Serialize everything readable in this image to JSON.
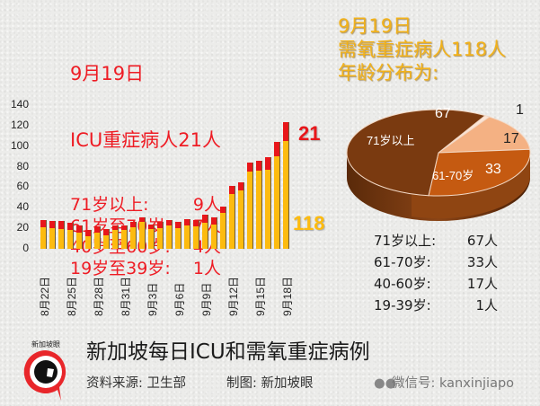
{
  "icu_panel": {
    "date": "9月19日",
    "headline": "ICU重症病人21人",
    "rows": [
      {
        "label": "71岁以上:",
        "value": "9人"
      },
      {
        "label": "61岁至70岁:",
        "value": "7人"
      },
      {
        "label": "40岁至60岁:",
        "value": "4人"
      },
      {
        "label": "19岁至39岁:",
        "value": "1人"
      }
    ]
  },
  "oxygen_panel": {
    "date": "9月19日",
    "headline": "需氧重症病人118人",
    "subhead": "年龄分布为:"
  },
  "distribution": [
    {
      "label": "71岁以上:",
      "value": "67人"
    },
    {
      "label": "61-70岁:",
      "value": "33人"
    },
    {
      "label": "40-60岁:",
      "value": "17人"
    },
    {
      "label": "19-39岁:",
      "value": "1人"
    }
  ],
  "footer": {
    "logo_text": "新加坡眼",
    "title": "新加坡每日ICU和需氧重症病例",
    "source": "资料来源:  卫生部",
    "maker": "制图:  新加坡眼",
    "wechat": "微信号: kanxinjiapo",
    "wechat_icon": "wechat-icon"
  },
  "colors": {
    "icu_red": "#e8161a",
    "oxygen_yellow": "#fdbb0f",
    "pie_71plus": "#7a3a10",
    "pie_61_70": "#c55a11",
    "pie_40_60": "#f4b183",
    "pie_19_39": "#fbe5d6"
  },
  "chart_data": [
    {
      "type": "bar",
      "stacked": true,
      "title": "新加坡每日ICU和需氧重症病例",
      "xlabel": "",
      "ylabel": "",
      "ylim": [
        0,
        140
      ],
      "yticks": [
        0,
        20,
        40,
        60,
        80,
        100,
        120,
        140
      ],
      "grid": false,
      "legend": "none",
      "x_tick_labels": [
        "8月22日",
        "8月25日",
        "8月28日",
        "8月31日",
        "9月3日",
        "9月6日",
        "9月9日",
        "9月12日",
        "9月15日",
        "9月18日"
      ],
      "categories": [
        "8/22",
        "8/23",
        "8/24",
        "8/25",
        "8/26",
        "8/27",
        "8/28",
        "8/29",
        "8/30",
        "8/31",
        "9/1",
        "9/2",
        "9/3",
        "9/4",
        "9/5",
        "9/6",
        "9/7",
        "9/8",
        "9/9",
        "9/10",
        "9/11",
        "9/12",
        "9/13",
        "9/14",
        "9/15",
        "9/16",
        "9/17",
        "9/18"
      ],
      "series": [
        {
          "name": "需氧重症 (oxygen)",
          "color": "#fdbb0f",
          "values": [
            21,
            20,
            19,
            18,
            16,
            12,
            16,
            13,
            18,
            18,
            21,
            26,
            19,
            20,
            23,
            20,
            23,
            22,
            25,
            24,
            35,
            53,
            57,
            75,
            76,
            77,
            90,
            105
          ]
        },
        {
          "name": "ICU",
          "color": "#e8161a",
          "values": [
            7,
            7,
            8,
            7,
            7,
            6,
            6,
            6,
            5,
            5,
            5,
            5,
            5,
            6,
            5,
            6,
            6,
            6,
            8,
            7,
            6,
            8,
            8,
            9,
            10,
            12,
            14,
            18
          ]
        }
      ],
      "annotations": [
        {
          "text": "21",
          "color": "#e8161a",
          "target": "ICU latest"
        },
        {
          "text": "118",
          "color": "#fdbb0f",
          "target": "oxygen latest"
        }
      ]
    },
    {
      "type": "pie",
      "title": "9月19日 需氧重症病人118人 年龄分布为:",
      "categories": [
        "71岁以上",
        "61-70岁",
        "40-60岁",
        "19-39岁"
      ],
      "values": [
        67,
        33,
        17,
        1
      ],
      "labels_shown": [
        "67",
        "71岁以上",
        "33",
        "61-70岁",
        "17",
        "1"
      ]
    }
  ]
}
